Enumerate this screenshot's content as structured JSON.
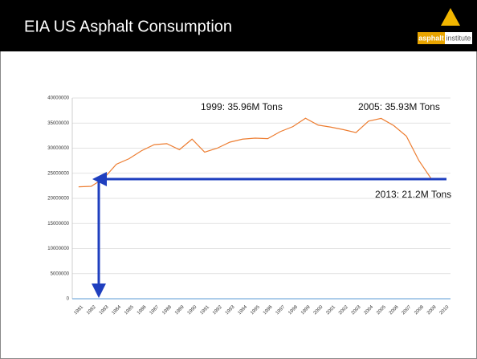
{
  "header": {
    "title": "EIA US Asphalt Consumption",
    "logo": {
      "word1": "asphalt",
      "word2": "institute"
    }
  },
  "chart_data": {
    "type": "line",
    "categories": [
      "1981",
      "1982",
      "1983",
      "1984",
      "1985",
      "1986",
      "1987",
      "1988",
      "1989",
      "1990",
      "1991",
      "1992",
      "1993",
      "1994",
      "1995",
      "1996",
      "1997",
      "1998",
      "1999",
      "2000",
      "2001",
      "2002",
      "2003",
      "2004",
      "2005",
      "2006",
      "2007",
      "2008",
      "2009",
      "2010"
    ],
    "series": [
      {
        "color": "#ed7d31",
        "values": [
          22300000,
          22400000,
          24000000,
          26800000,
          27900000,
          29500000,
          30700000,
          30900000,
          29700000,
          31800000,
          29200000,
          30000000,
          31200000,
          31800000,
          32000000,
          31900000,
          33300000,
          34300000,
          35960000,
          34600000,
          34200000,
          33700000,
          33100000,
          35400000,
          35930000,
          34500000,
          32400000,
          27500000,
          23800000,
          23900000
        ]
      }
    ],
    "ylim": [
      0,
      40000000
    ],
    "yticks": [
      0,
      5000000,
      10000000,
      15000000,
      20000000,
      25000000,
      30000000,
      35000000,
      40000000
    ],
    "annotations": [
      "1999:  35.96M Tons",
      "2005:  35.93M Tons",
      "2013:  21.2M Tons"
    ],
    "grid": true
  }
}
